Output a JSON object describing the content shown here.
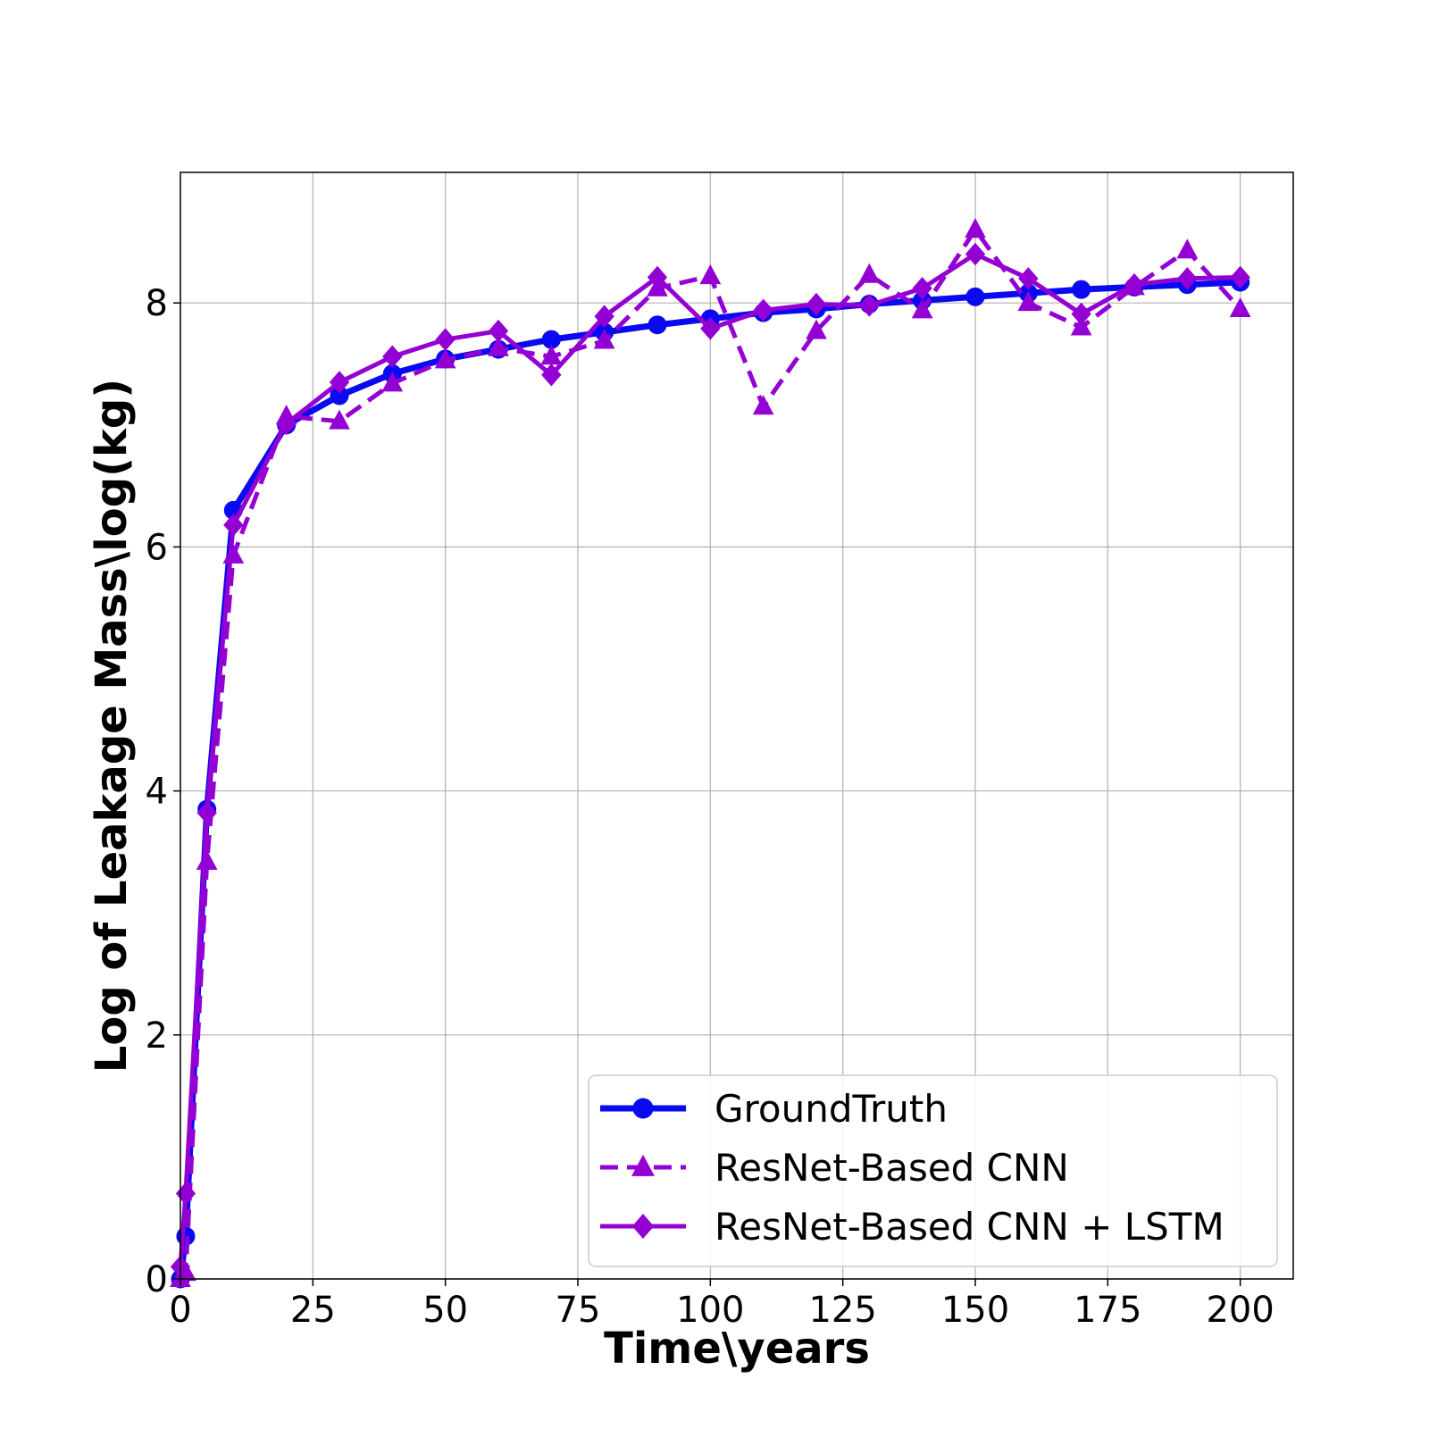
{
  "chart_data": {
    "type": "line",
    "xlabel": "Time\\years",
    "ylabel": "Log of Leakage Mass\\log(kg)",
    "xlim": [
      0,
      210
    ],
    "ylim": [
      0,
      9.07
    ],
    "xticks": [
      0,
      25,
      50,
      75,
      100,
      125,
      150,
      175,
      200
    ],
    "yticks": [
      0,
      2,
      4,
      6,
      8
    ],
    "grid": true,
    "legend_position": "lower-right",
    "x": [
      0,
      1,
      5,
      10,
      20,
      30,
      40,
      50,
      60,
      70,
      80,
      90,
      100,
      110,
      120,
      130,
      140,
      150,
      160,
      170,
      180,
      190,
      200
    ],
    "series": [
      {
        "name": "GroundTruth",
        "color": "#0a0af0",
        "style": "solid",
        "marker": "circle",
        "values": [
          0.0,
          0.35,
          3.85,
          6.3,
          7.0,
          7.24,
          7.42,
          7.54,
          7.62,
          7.7,
          7.76,
          7.82,
          7.87,
          7.92,
          7.95,
          7.99,
          8.02,
          8.05,
          8.08,
          8.11,
          8.13,
          8.15,
          8.17
        ]
      },
      {
        "name": "ResNet-Based CNN",
        "color": "#9400d3",
        "style": "dashed",
        "marker": "triangle",
        "values": [
          0.0,
          0.05,
          3.42,
          5.93,
          7.07,
          7.03,
          7.34,
          7.53,
          7.63,
          7.56,
          7.69,
          8.12,
          8.22,
          7.15,
          7.77,
          8.23,
          7.94,
          8.6,
          8.0,
          7.8,
          8.13,
          8.43,
          7.95
        ]
      },
      {
        "name": "ResNet-Based CNN + LSTM",
        "color": "#9400d3",
        "style": "solid",
        "marker": "diamond",
        "values": [
          0.1,
          0.7,
          3.82,
          6.18,
          7.01,
          7.35,
          7.56,
          7.7,
          7.77,
          7.41,
          7.89,
          8.21,
          7.79,
          7.94,
          7.99,
          7.98,
          8.12,
          8.4,
          8.2,
          7.91,
          8.15,
          8.2,
          8.21
        ]
      }
    ]
  }
}
